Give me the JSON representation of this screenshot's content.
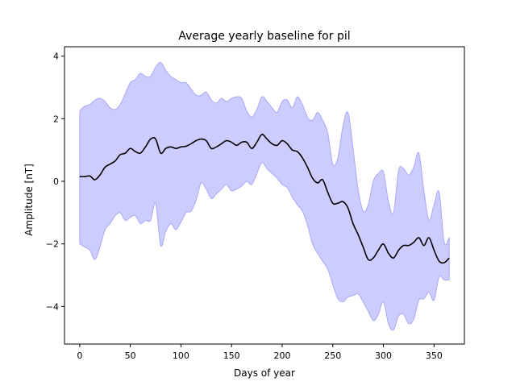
{
  "chart_data": {
    "type": "line",
    "title": "Average yearly baseline for pil",
    "xlabel": "Days of year",
    "ylabel": "Amplitude [nT]",
    "xlim": [
      -15,
      380
    ],
    "ylim": [
      -5.2,
      4.3
    ],
    "xticks": [
      0,
      50,
      100,
      150,
      200,
      250,
      300,
      350
    ],
    "yticks": [
      -4,
      -2,
      0,
      2,
      4
    ],
    "xtick_labels": [
      "0",
      "50",
      "100",
      "150",
      "200",
      "250",
      "300",
      "350"
    ],
    "ytick_labels": [
      "−4",
      "−2",
      "0",
      "2",
      "4"
    ],
    "grid": false,
    "legend": "none",
    "colors": {
      "line": "#000000",
      "band_fill": "#ccccff",
      "band_edge": "#a8a8f5"
    },
    "series": [
      {
        "x": [
          0,
          5,
          10,
          15,
          20,
          25,
          30,
          35,
          40,
          45,
          50,
          55,
          60,
          65,
          70,
          75,
          80,
          85,
          90,
          95,
          100,
          105,
          110,
          115,
          120,
          125,
          130,
          135,
          140,
          145,
          150,
          155,
          160,
          165,
          170,
          175,
          180,
          185,
          190,
          195,
          200,
          205,
          210,
          215,
          220,
          225,
          230,
          235,
          240,
          245,
          250,
          255,
          260,
          265,
          270,
          275,
          280,
          285,
          290,
          295,
          300,
          305,
          310,
          315,
          320,
          325,
          330,
          335,
          340,
          345,
          350,
          355,
          360,
          365
        ],
        "mean": [
          0.15,
          0.15,
          0.17,
          0.05,
          0.2,
          0.45,
          0.55,
          0.65,
          0.85,
          0.9,
          1.05,
          0.95,
          0.9,
          1.1,
          1.35,
          1.35,
          0.9,
          1.05,
          1.1,
          1.05,
          1.1,
          1.12,
          1.2,
          1.3,
          1.35,
          1.3,
          1.05,
          1.1,
          1.2,
          1.3,
          1.25,
          1.15,
          1.25,
          1.25,
          1.05,
          1.25,
          1.5,
          1.35,
          1.2,
          1.15,
          1.3,
          1.2,
          1.0,
          0.95,
          0.75,
          0.45,
          0.1,
          -0.05,
          0.05,
          -0.35,
          -0.7,
          -0.7,
          -0.65,
          -0.85,
          -1.35,
          -1.7,
          -2.1,
          -2.5,
          -2.45,
          -2.2,
          -2.0,
          -2.3,
          -2.45,
          -2.2,
          -2.05,
          -2.05,
          -1.95,
          -1.8,
          -2.05,
          -1.8,
          -2.2,
          -2.55,
          -2.6,
          -2.45
        ],
        "upper": [
          2.25,
          2.4,
          2.45,
          2.6,
          2.65,
          2.55,
          2.35,
          2.3,
          2.45,
          2.8,
          3.15,
          3.25,
          3.45,
          3.35,
          3.35,
          3.65,
          3.8,
          3.55,
          3.35,
          3.25,
          3.15,
          3.15,
          2.95,
          2.75,
          2.75,
          2.85,
          2.6,
          2.5,
          2.65,
          2.55,
          2.65,
          2.7,
          2.65,
          2.25,
          2.05,
          2.3,
          2.7,
          2.55,
          2.35,
          2.2,
          2.55,
          2.6,
          2.35,
          2.7,
          2.45,
          2.05,
          1.95,
          2.2,
          1.95,
          1.55,
          0.55,
          0.75,
          1.75,
          2.2,
          1.05,
          -0.25,
          -0.95,
          -0.75,
          0.0,
          0.25,
          0.3,
          -0.65,
          -1.0,
          0.35,
          0.4,
          0.2,
          0.45,
          0.9,
          -0.3,
          -1.25,
          -0.75,
          -0.35,
          -1.95,
          -1.8
        ],
        "lower": [
          -2.0,
          -2.1,
          -2.2,
          -2.5,
          -2.1,
          -1.55,
          -1.35,
          -1.1,
          -1.0,
          -1.25,
          -1.15,
          -1.1,
          -1.35,
          -1.25,
          -1.25,
          -0.7,
          -2.05,
          -1.6,
          -1.35,
          -1.55,
          -1.3,
          -1.0,
          -0.95,
          -0.6,
          -0.05,
          -0.25,
          -0.55,
          -0.4,
          -0.25,
          -0.1,
          -0.3,
          -0.25,
          -0.15,
          0.0,
          -0.1,
          0.25,
          0.6,
          0.4,
          0.25,
          0.1,
          -0.1,
          -0.2,
          -0.5,
          -0.75,
          -0.95,
          -1.4,
          -2.0,
          -2.3,
          -2.55,
          -2.8,
          -3.3,
          -3.75,
          -3.85,
          -3.7,
          -3.65,
          -3.6,
          -3.85,
          -4.15,
          -4.45,
          -4.25,
          -3.85,
          -4.55,
          -4.75,
          -4.3,
          -4.25,
          -4.55,
          -4.4,
          -3.8,
          -3.75,
          -3.55,
          -3.8,
          -3.05,
          -3.15,
          -3.15
        ]
      }
    ]
  }
}
